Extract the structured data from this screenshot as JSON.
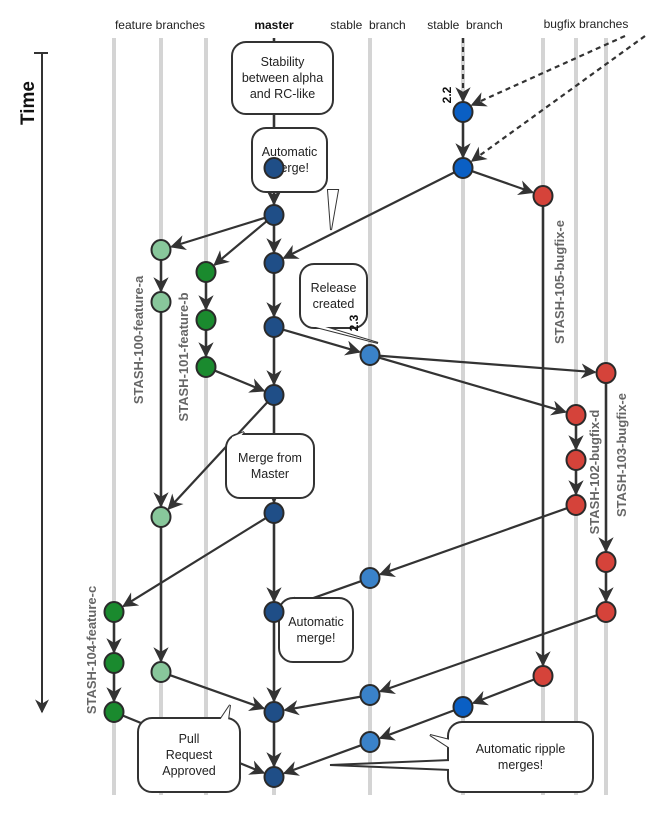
{
  "axis": {
    "time_label": "Time"
  },
  "headers": {
    "feature_branches": "feature branches",
    "master": "master",
    "stable_branch_1": "stable  branch",
    "stable_branch_2": "stable  branch",
    "bugfix_branches": "bugfix branches"
  },
  "versions": {
    "v22": "2.2",
    "v23": "2.3"
  },
  "callouts": {
    "stability": [
      "Stability",
      "between alpha",
      "and RC-like"
    ],
    "auto_merge_1": [
      "Automatic",
      "merge!"
    ],
    "release_created": [
      "Release",
      "created"
    ],
    "merge_from_master": [
      "Merge from",
      "Master"
    ],
    "auto_merge_2": [
      "Automatic",
      "merge!"
    ],
    "pull_request": [
      "Pull",
      "Request",
      "Approved"
    ],
    "ripple": [
      "Automatic ripple",
      "merges!"
    ]
  },
  "branch_labels": {
    "feature_a": "STASH-100-feature-a",
    "feature_b": "STASH-101-feature-b",
    "feature_c": "STASH-104-feature-c",
    "bugfix_105": "STASH-105-bugfix-e",
    "bugfix_102": "STASH-102-bugfix-d",
    "bugfix_103": "STASH-103-bugfix-e"
  },
  "colors": {
    "master": "#1f4e87",
    "stable_22": "#0a5fc4",
    "stable_23": "#3a82c9",
    "feature_light": "#88c79b",
    "feature_dark": "#1a8a2e",
    "bugfix": "#d5433a",
    "lane": "#d4d4d4",
    "edge": "#333333"
  }
}
